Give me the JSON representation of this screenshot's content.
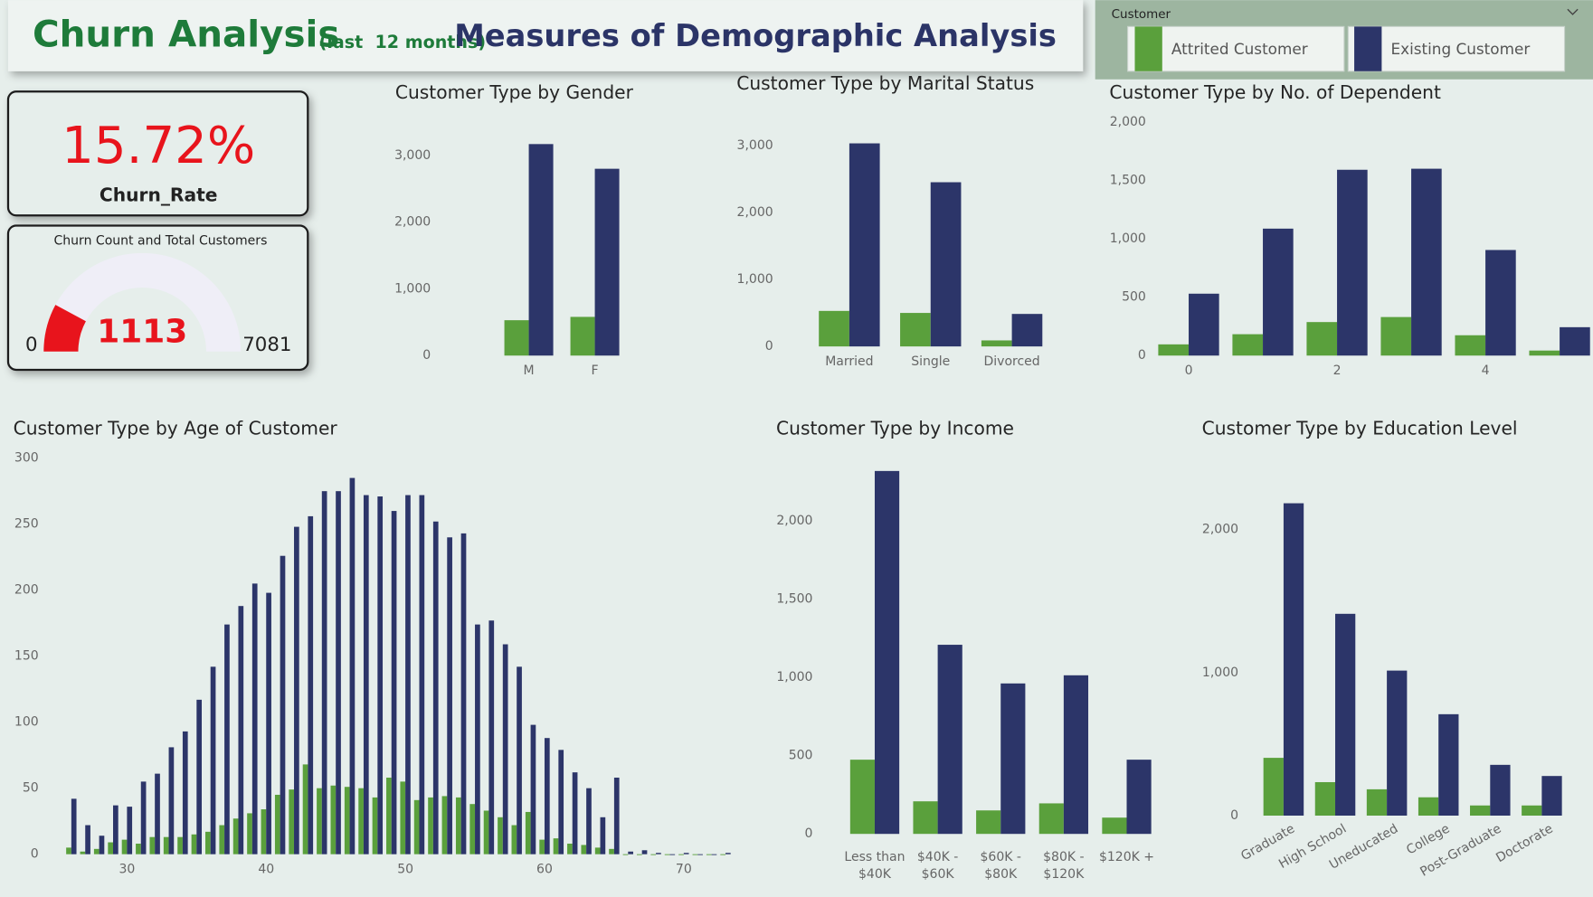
{
  "header": {
    "title": "Churn Analysis",
    "subtitle": "(last  12 months)",
    "heading": "Measures of Demographic Analysis"
  },
  "slicer": {
    "title": "Customer",
    "items": [
      {
        "label": "Attrited Customer",
        "color": "#5aa03c"
      },
      {
        "label": "Existing Customer",
        "color": "#2c3569"
      }
    ]
  },
  "kpi": {
    "value": "15.72%",
    "label": "Churn_Rate"
  },
  "gauge": {
    "title": "Churn Count and Total Customers",
    "min": 0,
    "max": 7081,
    "value": 1113,
    "color": "#e8141c"
  },
  "chart_data": [
    {
      "type": "bar",
      "title": "Customer Type by Gender",
      "categories": [
        "M",
        "F"
      ],
      "series": [
        {
          "color": "#5aa03c",
          "values": [
            530,
            580
          ]
        },
        {
          "color": "#2c3569",
          "values": [
            3170,
            2800
          ]
        }
      ],
      "ylim": [
        0,
        3400
      ],
      "yticks": [
        0,
        {
          "value": 1000,
          "label": "1,000"
        },
        {
          "value": 2000,
          "label": "2,000"
        },
        {
          "value": 3000,
          "label": "3,000"
        }
      ],
      "grid": false
    },
    {
      "type": "bar",
      "title": "Customer Type by Marital Status",
      "categories": [
        "Married",
        "Single",
        "Divorced"
      ],
      "series": [
        {
          "color": "#5aa03c",
          "values": [
            530,
            500,
            90
          ]
        },
        {
          "color": "#2c3569",
          "values": [
            3030,
            2450,
            485
          ]
        }
      ],
      "ylim": [
        0,
        3300
      ],
      "yticks": [
        0,
        {
          "value": 1000,
          "label": "1,000"
        },
        {
          "value": 2000,
          "label": "2,000"
        },
        {
          "value": 3000,
          "label": "3,000"
        }
      ],
      "grid": false
    },
    {
      "type": "bar",
      "title": "Customer Type by No. of Dependent",
      "x": [
        0,
        1,
        2,
        3,
        4,
        5
      ],
      "series": [
        {
          "color": "#5aa03c",
          "values": [
            96,
            183,
            287,
            330,
            174,
            43
          ]
        },
        {
          "color": "#2c3569",
          "values": [
            530,
            1087,
            1591,
            1600,
            904,
            243
          ]
        }
      ],
      "xlim": [
        -0.5,
        5.45
      ],
      "xticks": [
        0,
        2,
        4
      ],
      "ylim": [
        0,
        2000
      ],
      "yticks": [
        0,
        500,
        {
          "value": 1000,
          "label": "1,000"
        },
        {
          "value": 1500,
          "label": "1,500"
        },
        {
          "value": 2000,
          "label": "2,000"
        }
      ],
      "grid": false
    },
    {
      "type": "bar",
      "title": "Customer Type by Age of Customer",
      "x": [
        26,
        27,
        28,
        29,
        30,
        31,
        32,
        33,
        34,
        35,
        36,
        37,
        38,
        39,
        40,
        41,
        42,
        43,
        44,
        45,
        46,
        47,
        48,
        49,
        50,
        51,
        52,
        53,
        54,
        55,
        56,
        57,
        58,
        59,
        60,
        61,
        62,
        63,
        64,
        65,
        66,
        67,
        68,
        69,
        70,
        71,
        72,
        73
      ],
      "series": [
        {
          "color": "#5aa03c",
          "values": [
            5,
            2,
            4,
            9,
            11,
            8,
            13,
            13,
            13,
            15,
            17,
            22,
            27,
            31,
            34,
            45,
            49,
            68,
            50,
            52,
            51,
            50,
            43,
            58,
            55,
            41,
            43,
            44,
            43,
            38,
            33,
            28,
            22,
            32,
            11,
            12,
            8,
            7,
            5,
            4,
            0,
            0,
            0,
            0,
            0,
            0,
            0,
            0
          ]
        },
        {
          "color": "#2c3569",
          "values": [
            42,
            22,
            14,
            37,
            36,
            55,
            61,
            81,
            93,
            117,
            142,
            174,
            188,
            205,
            198,
            226,
            248,
            256,
            275,
            275,
            285,
            272,
            271,
            260,
            272,
            272,
            252,
            240,
            243,
            174,
            177,
            159,
            142,
            98,
            88,
            79,
            62,
            50,
            28,
            58,
            2,
            3,
            1,
            0,
            1,
            0,
            0,
            1
          ]
        }
      ],
      "xlim": [
        25,
        74
      ],
      "xticks": [
        30,
        40,
        50,
        60,
        70
      ],
      "ylim": [
        0,
        300
      ],
      "yticks": [
        0,
        50,
        100,
        150,
        200,
        250,
        300
      ],
      "grid": false
    },
    {
      "type": "bar",
      "title": "Customer Type by Income",
      "categories": [
        "Less than $40K",
        "$40K - $60K",
        "$60K - $80K",
        "$80K - $120K",
        "$120K +"
      ],
      "series": [
        {
          "color": "#5aa03c",
          "values": [
            474,
            208,
            150,
            195,
            104
          ]
        },
        {
          "color": "#2c3569",
          "values": [
            2318,
            1208,
            961,
            1013,
            474
          ]
        }
      ],
      "ylim": [
        0,
        2400
      ],
      "yticks": [
        0,
        500,
        {
          "value": 1000,
          "label": "1,000"
        },
        {
          "value": 1500,
          "label": "1,500"
        },
        {
          "value": 2000,
          "label": "2,000"
        }
      ],
      "grid": false
    },
    {
      "type": "bar",
      "title": "Customer Type by Education Level",
      "categories": [
        "Graduate",
        "High School",
        "Uneducated",
        "College",
        "Post-Graduate",
        "Doctorate"
      ],
      "series": [
        {
          "color": "#5aa03c",
          "values": [
            404,
            234,
            184,
            128,
            71,
            71
          ]
        },
        {
          "color": "#2c3569",
          "values": [
            2184,
            1411,
            1014,
            709,
            355,
            277
          ]
        }
      ],
      "ylim": [
        0,
        2400
      ],
      "yticks": [
        0,
        {
          "value": 1000,
          "label": "1,000"
        },
        {
          "value": 2000,
          "label": "2,000"
        }
      ],
      "grid": false
    }
  ]
}
